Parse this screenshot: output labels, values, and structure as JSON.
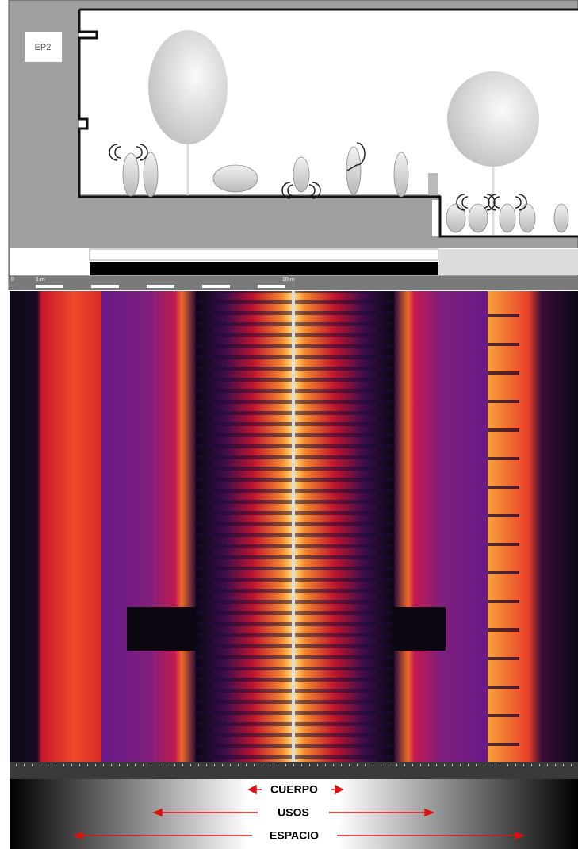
{
  "plan": {
    "tag": "EP2",
    "scale_labels": [
      "0",
      "1 m",
      "10 m"
    ]
  },
  "legend": {
    "items": [
      "CUERPO",
      "USOS",
      "ESPACIO"
    ]
  }
}
